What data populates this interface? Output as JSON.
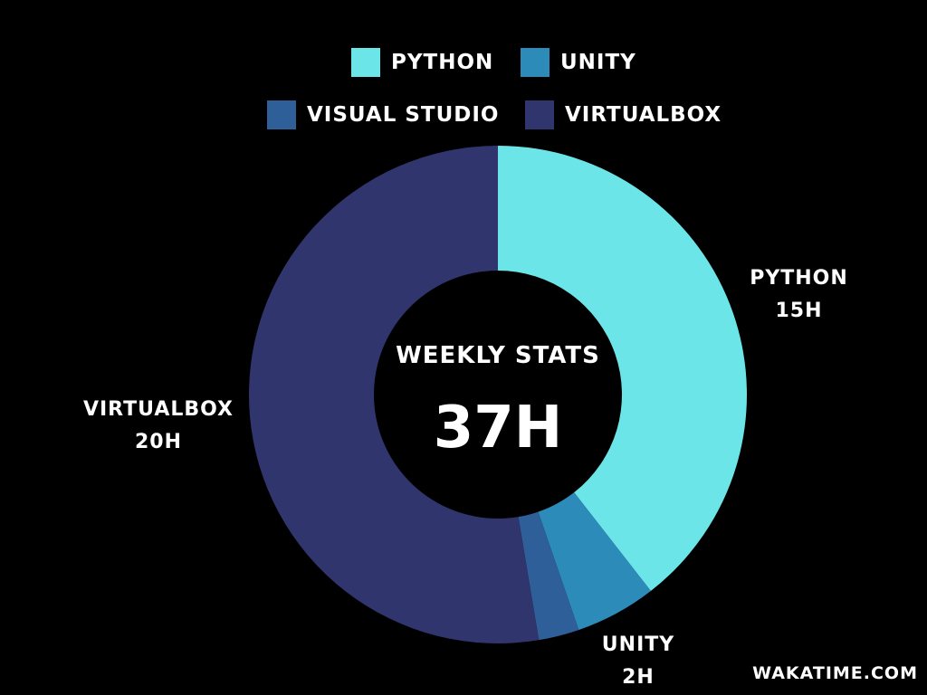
{
  "chart_data": {
    "type": "pie",
    "style": "donut",
    "legend_placement": "top",
    "categories": [
      "PYTHON",
      "UNITY",
      "VISUAL STUDIO",
      "VIRTUALBOX"
    ],
    "values": [
      15,
      2,
      1,
      20
    ],
    "colors": [
      "#6ce5e8",
      "#2d8bba",
      "#2f5f98",
      "#31356e"
    ],
    "slice_labels": [
      {
        "name": "PYTHON",
        "value_text": "15H"
      },
      {
        "name": "UNITY",
        "value_text": "2H"
      },
      {
        "name": "VIRTUALBOX",
        "value_text": "20H"
      }
    ],
    "center_title": "WEEKLY STATS",
    "center_value": "37H"
  },
  "footer": {
    "site": "WAKATIME.COM"
  }
}
